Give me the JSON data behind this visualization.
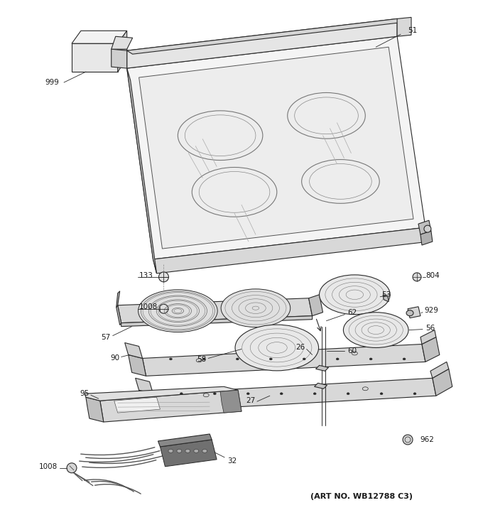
{
  "art_no": "(ART NO. WB12788 C3)",
  "bg_color": "#ffffff",
  "line_color": "#2a2a2a",
  "label_color": "#1a1a1a",
  "figsize": [
    6.8,
    7.25
  ],
  "dpi": 100
}
